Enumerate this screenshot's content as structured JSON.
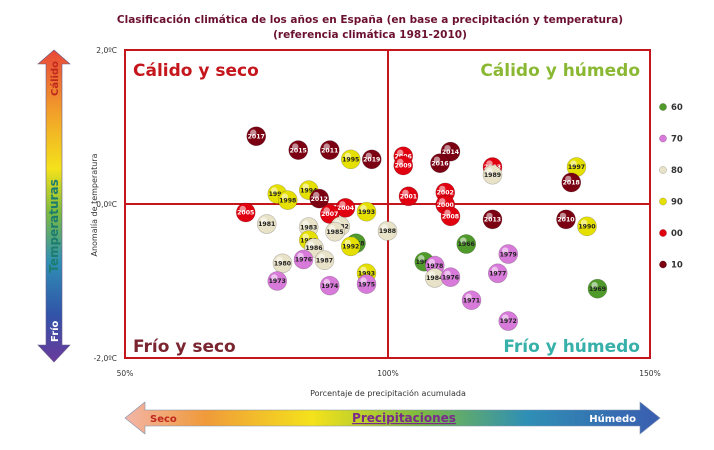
{
  "chart_data": {
    "type": "scatter",
    "title": "Clasificación climática de los años en España (en base a precipitación y temperatura)",
    "subtitle": "(referencia climática 1981-2010)",
    "xlabel": "Porcentaje de precipitación acumulada",
    "ylabel": "Anomalía de temperatura",
    "x_ticks": [
      "50%",
      "100%",
      "150%"
    ],
    "y_ticks": [
      "2,0ºC",
      "0,0ºC",
      "-2,0ºC"
    ],
    "xlim": [
      50,
      150
    ],
    "ylim": [
      -2.0,
      2.0
    ],
    "quadrants": {
      "top_left": "Cálido y seco",
      "top_right": "Cálido y húmedo",
      "bottom_left": "Frío y seco",
      "bottom_right": "Frío y húmedo"
    },
    "temperature_arrow": {
      "label": "Temperaturas",
      "top": "Cálido",
      "bottom": "Frío"
    },
    "precip_arrow": {
      "label": "Precipitaciones",
      "left": "Seco",
      "right": "Húmedo"
    },
    "legend": [
      {
        "label": "60",
        "color": "#4f9a2a"
      },
      {
        "label": "70",
        "color": "#d77ad9"
      },
      {
        "label": "80",
        "color": "#e8e2c8"
      },
      {
        "label": "90",
        "color": "#e6e000"
      },
      {
        "label": "00",
        "color": "#e00010"
      },
      {
        "label": "10",
        "color": "#7a0012"
      }
    ],
    "points": [
      {
        "year": "2017",
        "x": 75,
        "y": 0.88,
        "decade": "10"
      },
      {
        "year": "2015",
        "x": 83,
        "y": 0.7,
        "decade": "10"
      },
      {
        "year": "2011",
        "x": 89,
        "y": 0.7,
        "decade": "10"
      },
      {
        "year": "1995",
        "x": 93,
        "y": 0.58,
        "decade": "90"
      },
      {
        "year": "2019",
        "x": 97,
        "y": 0.58,
        "decade": "10"
      },
      {
        "year": "2006",
        "x": 103,
        "y": 0.62,
        "decade": "00"
      },
      {
        "year": "2009",
        "x": 103,
        "y": 0.5,
        "decade": "00"
      },
      {
        "year": "2014",
        "x": 112,
        "y": 0.68,
        "decade": "10"
      },
      {
        "year": "2016",
        "x": 110,
        "y": 0.53,
        "decade": "10"
      },
      {
        "year": "2003",
        "x": 120,
        "y": 0.48,
        "decade": "00"
      },
      {
        "year": "1989",
        "x": 120,
        "y": 0.38,
        "decade": "80"
      },
      {
        "year": "1997",
        "x": 136,
        "y": 0.48,
        "decade": "90"
      },
      {
        "year": "2018",
        "x": 135,
        "y": 0.28,
        "decade": "10"
      },
      {
        "year": "1994",
        "x": 79,
        "y": 0.13,
        "decade": "90"
      },
      {
        "year": "1994",
        "x": 85,
        "y": 0.18,
        "decade": "90"
      },
      {
        "year": "1998",
        "x": 81,
        "y": 0.05,
        "decade": "90"
      },
      {
        "year": "2012",
        "x": 87,
        "y": 0.07,
        "decade": "10"
      },
      {
        "year": "2001",
        "x": 104,
        "y": 0.1,
        "decade": "00"
      },
      {
        "year": "2002",
        "x": 111,
        "y": 0.15,
        "decade": "00"
      },
      {
        "year": "2000",
        "x": 111,
        "y": -0.01,
        "decade": "00"
      },
      {
        "year": "2004",
        "x": 92,
        "y": -0.05,
        "decade": "00"
      },
      {
        "year": "1993",
        "x": 96,
        "y": -0.1,
        "decade": "90"
      },
      {
        "year": "2005",
        "x": 73,
        "y": -0.11,
        "decade": "00"
      },
      {
        "year": "2007",
        "x": 89,
        "y": -0.13,
        "decade": "00"
      },
      {
        "year": "2008",
        "x": 112,
        "y": -0.16,
        "decade": "00"
      },
      {
        "year": "2013",
        "x": 120,
        "y": -0.2,
        "decade": "10"
      },
      {
        "year": "2010",
        "x": 134,
        "y": -0.2,
        "decade": "10"
      },
      {
        "year": "1990",
        "x": 138,
        "y": -0.29,
        "decade": "90"
      },
      {
        "year": "1981",
        "x": 77,
        "y": -0.26,
        "decade": "80"
      },
      {
        "year": "1983",
        "x": 85,
        "y": -0.3,
        "decade": "80"
      },
      {
        "year": "1982",
        "x": 91,
        "y": -0.29,
        "decade": "80"
      },
      {
        "year": "1985",
        "x": 90,
        "y": -0.36,
        "decade": "80"
      },
      {
        "year": "1988",
        "x": 100,
        "y": -0.35,
        "decade": "80"
      },
      {
        "year": "1991",
        "x": 85,
        "y": -0.47,
        "decade": "90"
      },
      {
        "year": "1986",
        "x": 86,
        "y": -0.57,
        "decade": "80"
      },
      {
        "year": "1968",
        "x": 94,
        "y": -0.51,
        "decade": "60"
      },
      {
        "year": "1992",
        "x": 93,
        "y": -0.55,
        "decade": "90"
      },
      {
        "year": "1966",
        "x": 115,
        "y": -0.52,
        "decade": "60"
      },
      {
        "year": "1979",
        "x": 123,
        "y": -0.65,
        "decade": "70"
      },
      {
        "year": "1980",
        "x": 80,
        "y": -0.77,
        "decade": "80"
      },
      {
        "year": "1976",
        "x": 84,
        "y": -0.72,
        "decade": "70"
      },
      {
        "year": "1987",
        "x": 88,
        "y": -0.73,
        "decade": "80"
      },
      {
        "year": "1965",
        "x": 107,
        "y": -0.75,
        "decade": "60"
      },
      {
        "year": "1978",
        "x": 109,
        "y": -0.8,
        "decade": "70"
      },
      {
        "year": "1977",
        "x": 121,
        "y": -0.9,
        "decade": "70"
      },
      {
        "year": "1984",
        "x": 109,
        "y": -0.96,
        "decade": "80"
      },
      {
        "year": "1976",
        "x": 112,
        "y": -0.95,
        "decade": "70"
      },
      {
        "year": "1993",
        "x": 96,
        "y": -0.9,
        "decade": "90"
      },
      {
        "year": "1973",
        "x": 79,
        "y": -1.0,
        "decade": "70"
      },
      {
        "year": "1974",
        "x": 89,
        "y": -1.06,
        "decade": "70"
      },
      {
        "year": "1975",
        "x": 96,
        "y": -1.04,
        "decade": "70"
      },
      {
        "year": "1969",
        "x": 140,
        "y": -1.1,
        "decade": "60"
      },
      {
        "year": "1971",
        "x": 116,
        "y": -1.25,
        "decade": "70"
      },
      {
        "year": "1972",
        "x": 123,
        "y": -1.52,
        "decade": "70"
      }
    ]
  }
}
